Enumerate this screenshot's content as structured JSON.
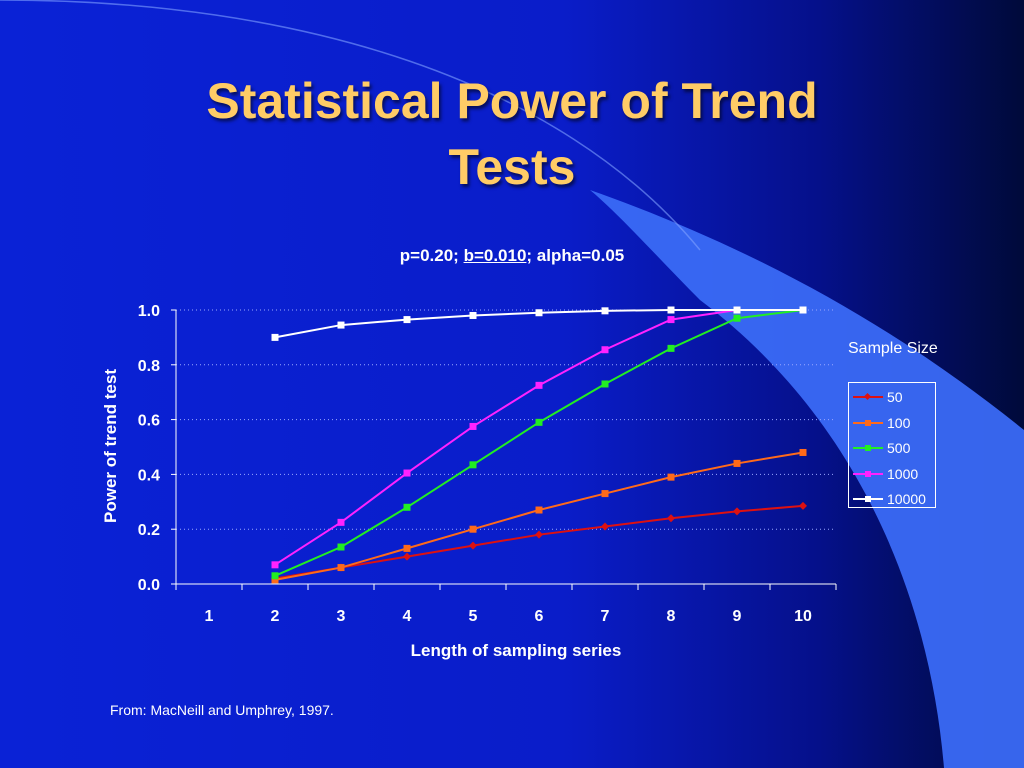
{
  "slide": {
    "title_line1": "Statistical Power of Trend",
    "title_line2": "Tests",
    "source": "From: MacNeill and Umphrey, 1997."
  },
  "chart_data": {
    "type": "line",
    "title_parts": [
      "p=0.20; ",
      "b=0.010",
      "; alpha=0.05"
    ],
    "xlabel": "Length of sampling series",
    "ylabel": "Power of trend test",
    "x_categories": [
      "1",
      "2",
      "3",
      "4",
      "5",
      "6",
      "7",
      "8",
      "9",
      "10"
    ],
    "y_ticks": [
      "0.0",
      "0.2",
      "0.4",
      "0.6",
      "0.8",
      "1.0"
    ],
    "ylim": [
      0,
      1
    ],
    "grid": "horizontal dotted",
    "legend_title": "Sample Size",
    "legend_position": "right",
    "series": [
      {
        "name": "50",
        "color": "#dd1111",
        "marker": "diamond",
        "x": [
          2,
          3,
          4,
          5,
          6,
          7,
          8,
          9,
          10
        ],
        "values": [
          0.02,
          0.06,
          0.1,
          0.14,
          0.18,
          0.21,
          0.24,
          0.265,
          0.285
        ]
      },
      {
        "name": "100",
        "color": "#ff6a1a",
        "marker": "square",
        "x": [
          2,
          3,
          4,
          5,
          6,
          7,
          8,
          9,
          10
        ],
        "values": [
          0.015,
          0.06,
          0.13,
          0.2,
          0.27,
          0.33,
          0.39,
          0.44,
          0.48
        ]
      },
      {
        "name": "500",
        "color": "#22ee22",
        "marker": "square",
        "x": [
          2,
          3,
          4,
          5,
          6,
          7,
          8,
          9,
          10
        ],
        "values": [
          0.03,
          0.135,
          0.28,
          0.435,
          0.59,
          0.73,
          0.86,
          0.97,
          1.0
        ]
      },
      {
        "name": "1000",
        "color": "#ff22ff",
        "marker": "square",
        "x": [
          2,
          3,
          4,
          5,
          6,
          7,
          8,
          9,
          10
        ],
        "values": [
          0.07,
          0.225,
          0.405,
          0.575,
          0.725,
          0.855,
          0.965,
          1.0,
          1.0
        ]
      },
      {
        "name": "10000",
        "color": "#ffffff",
        "marker": "square",
        "x": [
          2,
          3,
          4,
          5,
          6,
          7,
          8,
          9,
          10
        ],
        "values": [
          0.9,
          0.945,
          0.965,
          0.98,
          0.99,
          0.997,
          1.0,
          1.0,
          1.0
        ]
      }
    ]
  }
}
